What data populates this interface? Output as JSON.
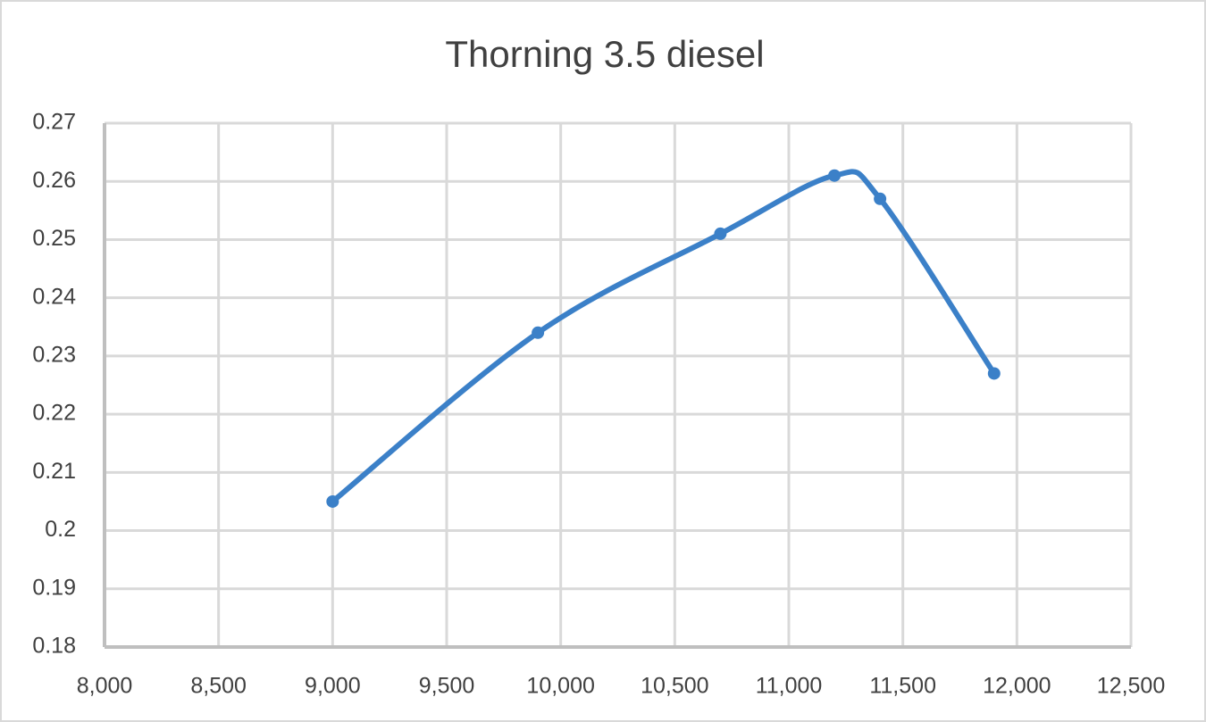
{
  "chart_data": {
    "type": "scatter-line",
    "title": "Thorning 3.5 diesel",
    "x": [
      9000,
      9900,
      10700,
      11200,
      11400,
      11900
    ],
    "series": [
      {
        "color": "#3b80c8",
        "values": [
          0.205,
          0.234,
          0.251,
          0.261,
          0.257,
          0.227
        ]
      }
    ],
    "xlim": [
      8000,
      12500
    ],
    "xticks": [
      {
        "value": 8000,
        "label": "8,000"
      },
      {
        "value": 8500,
        "label": "8,500"
      },
      {
        "value": 9000,
        "label": "9,000"
      },
      {
        "value": 9500,
        "label": "9,500"
      },
      {
        "value": 10000,
        "label": "10,000"
      },
      {
        "value": 10500,
        "label": "10,500"
      },
      {
        "value": 11000,
        "label": "11,000"
      },
      {
        "value": 11500,
        "label": "11,500"
      },
      {
        "value": 12000,
        "label": "12,000"
      },
      {
        "value": 12500,
        "label": "12,500"
      }
    ],
    "ylim": [
      0.18,
      0.27
    ],
    "yticks": [
      0.18,
      0.19,
      0.2,
      0.21,
      0.22,
      0.23,
      0.24,
      0.25,
      0.26,
      0.27
    ],
    "grid": true,
    "smooth": true
  }
}
